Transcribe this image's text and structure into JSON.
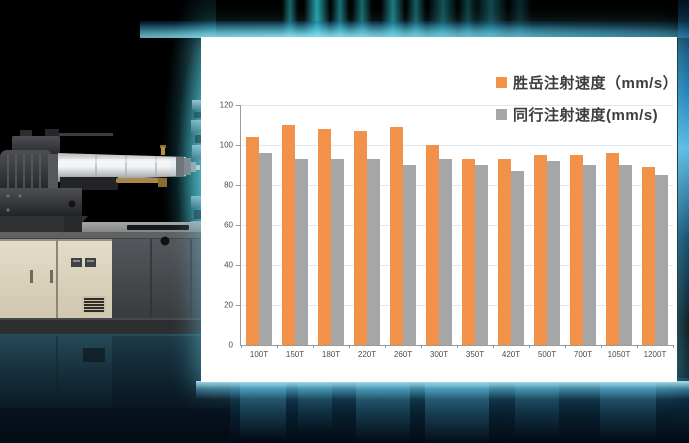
{
  "scene": {
    "background_color": "#000000",
    "glow_color": "#2e98a6",
    "accent_blue": "#1a84c8",
    "machine_alt": "injection-molding-machine"
  },
  "panel": {
    "background": "#ffffff"
  },
  "chart_data": {
    "type": "bar",
    "title": "",
    "xlabel": "",
    "ylabel": "",
    "categories": [
      "100T",
      "150T",
      "180T",
      "220T",
      "260T",
      "300T",
      "350T",
      "420T",
      "500T",
      "700T",
      "1050T",
      "1200T"
    ],
    "series": [
      {
        "name": "胜岳注射速度（mm/s）",
        "color": "#F2924A",
        "values": [
          104,
          110,
          108,
          107,
          109,
          100,
          93,
          93,
          95,
          95,
          96,
          89
        ]
      },
      {
        "name": "同行注射速度(mm/s)",
        "color": "#A6A6A6",
        "values": [
          96,
          93,
          93,
          93,
          90,
          93,
          90,
          87,
          92,
          90,
          90,
          85
        ]
      }
    ],
    "ylim": [
      0,
      120
    ],
    "yticks": [
      0,
      20,
      40,
      60,
      80,
      100,
      120
    ],
    "grid": true,
    "legend_position": "top-right",
    "axis_color": "#9b9b9b",
    "gridline_color": "#dce8f2",
    "tick_label_color": "#4c4b42"
  }
}
